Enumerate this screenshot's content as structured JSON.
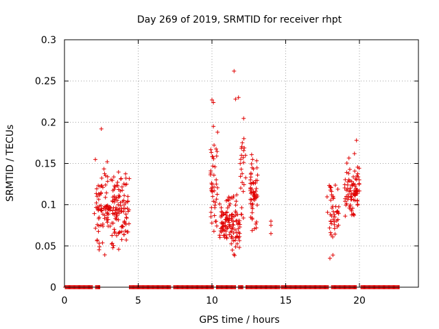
{
  "chart_data": {
    "type": "scatter",
    "title": "Day 269 of 2019, SRMTID for receiver rhpt",
    "xlabel": "GPS time / hours",
    "ylabel": "SRMTID / TECUs",
    "xlim": [
      0,
      24
    ],
    "ylim": [
      0,
      0.3
    ],
    "xticks": [
      0,
      5,
      10,
      15,
      20
    ],
    "xtick_labels": [
      "0",
      "5",
      "10",
      "15",
      "20"
    ],
    "yticks": [
      0,
      0.05,
      0.1,
      0.15,
      0.2,
      0.25,
      0.3
    ],
    "ytick_labels": [
      "0",
      "0.05",
      "0.1",
      "0.15",
      "0.2",
      "0.25",
      "0.3"
    ],
    "grid": true,
    "marker": "+",
    "color": "#e00000",
    "baseline_segments": [
      [
        0.05,
        1.9
      ],
      [
        2.1,
        2.4
      ],
      [
        4.4,
        7.2
      ],
      [
        7.4,
        10.1
      ],
      [
        10.3,
        11.6
      ],
      [
        11.8,
        12.1
      ],
      [
        12.3,
        14.6
      ],
      [
        14.7,
        17.9
      ],
      [
        18.1,
        19.8
      ],
      [
        20.1,
        22.7
      ]
    ],
    "clusters": [
      {
        "x": [
          2.0,
          4.4
        ],
        "y": [
          0.02,
          0.19
        ],
        "n": 190,
        "seed": 11
      },
      {
        "x": [
          9.9,
          10.4
        ],
        "y": [
          0.045,
          0.23
        ],
        "n": 45,
        "seed": 23
      },
      {
        "x": [
          10.5,
          11.9
        ],
        "y": [
          0.03,
          0.14
        ],
        "n": 120,
        "seed": 37
      },
      {
        "x": [
          11.9,
          12.3
        ],
        "y": [
          0.06,
          0.23
        ],
        "n": 25,
        "seed": 41
      },
      {
        "x": [
          12.6,
          13.1
        ],
        "y": [
          0.045,
          0.205
        ],
        "n": 60,
        "seed": 53
      },
      {
        "x": [
          17.8,
          18.6
        ],
        "y": [
          0.035,
          0.16
        ],
        "n": 45,
        "seed": 61
      },
      {
        "x": [
          19.0,
          20.0
        ],
        "y": [
          0.07,
          0.18
        ],
        "n": 85,
        "seed": 73
      }
    ],
    "points": [
      {
        "x": 2.5,
        "y": 0.192
      },
      {
        "x": 11.5,
        "y": 0.262
      },
      {
        "x": 11.6,
        "y": 0.228
      },
      {
        "x": 11.8,
        "y": 0.23
      },
      {
        "x": 10.0,
        "y": 0.227
      },
      {
        "x": 10.1,
        "y": 0.224
      },
      {
        "x": 10.1,
        "y": 0.195
      },
      {
        "x": 14.0,
        "y": 0.08
      },
      {
        "x": 14.0,
        "y": 0.075
      },
      {
        "x": 14.0,
        "y": 0.065
      },
      {
        "x": 19.8,
        "y": 0.178
      },
      {
        "x": 18.0,
        "y": 0.035
      },
      {
        "x": 18.2,
        "y": 0.039
      }
    ]
  }
}
